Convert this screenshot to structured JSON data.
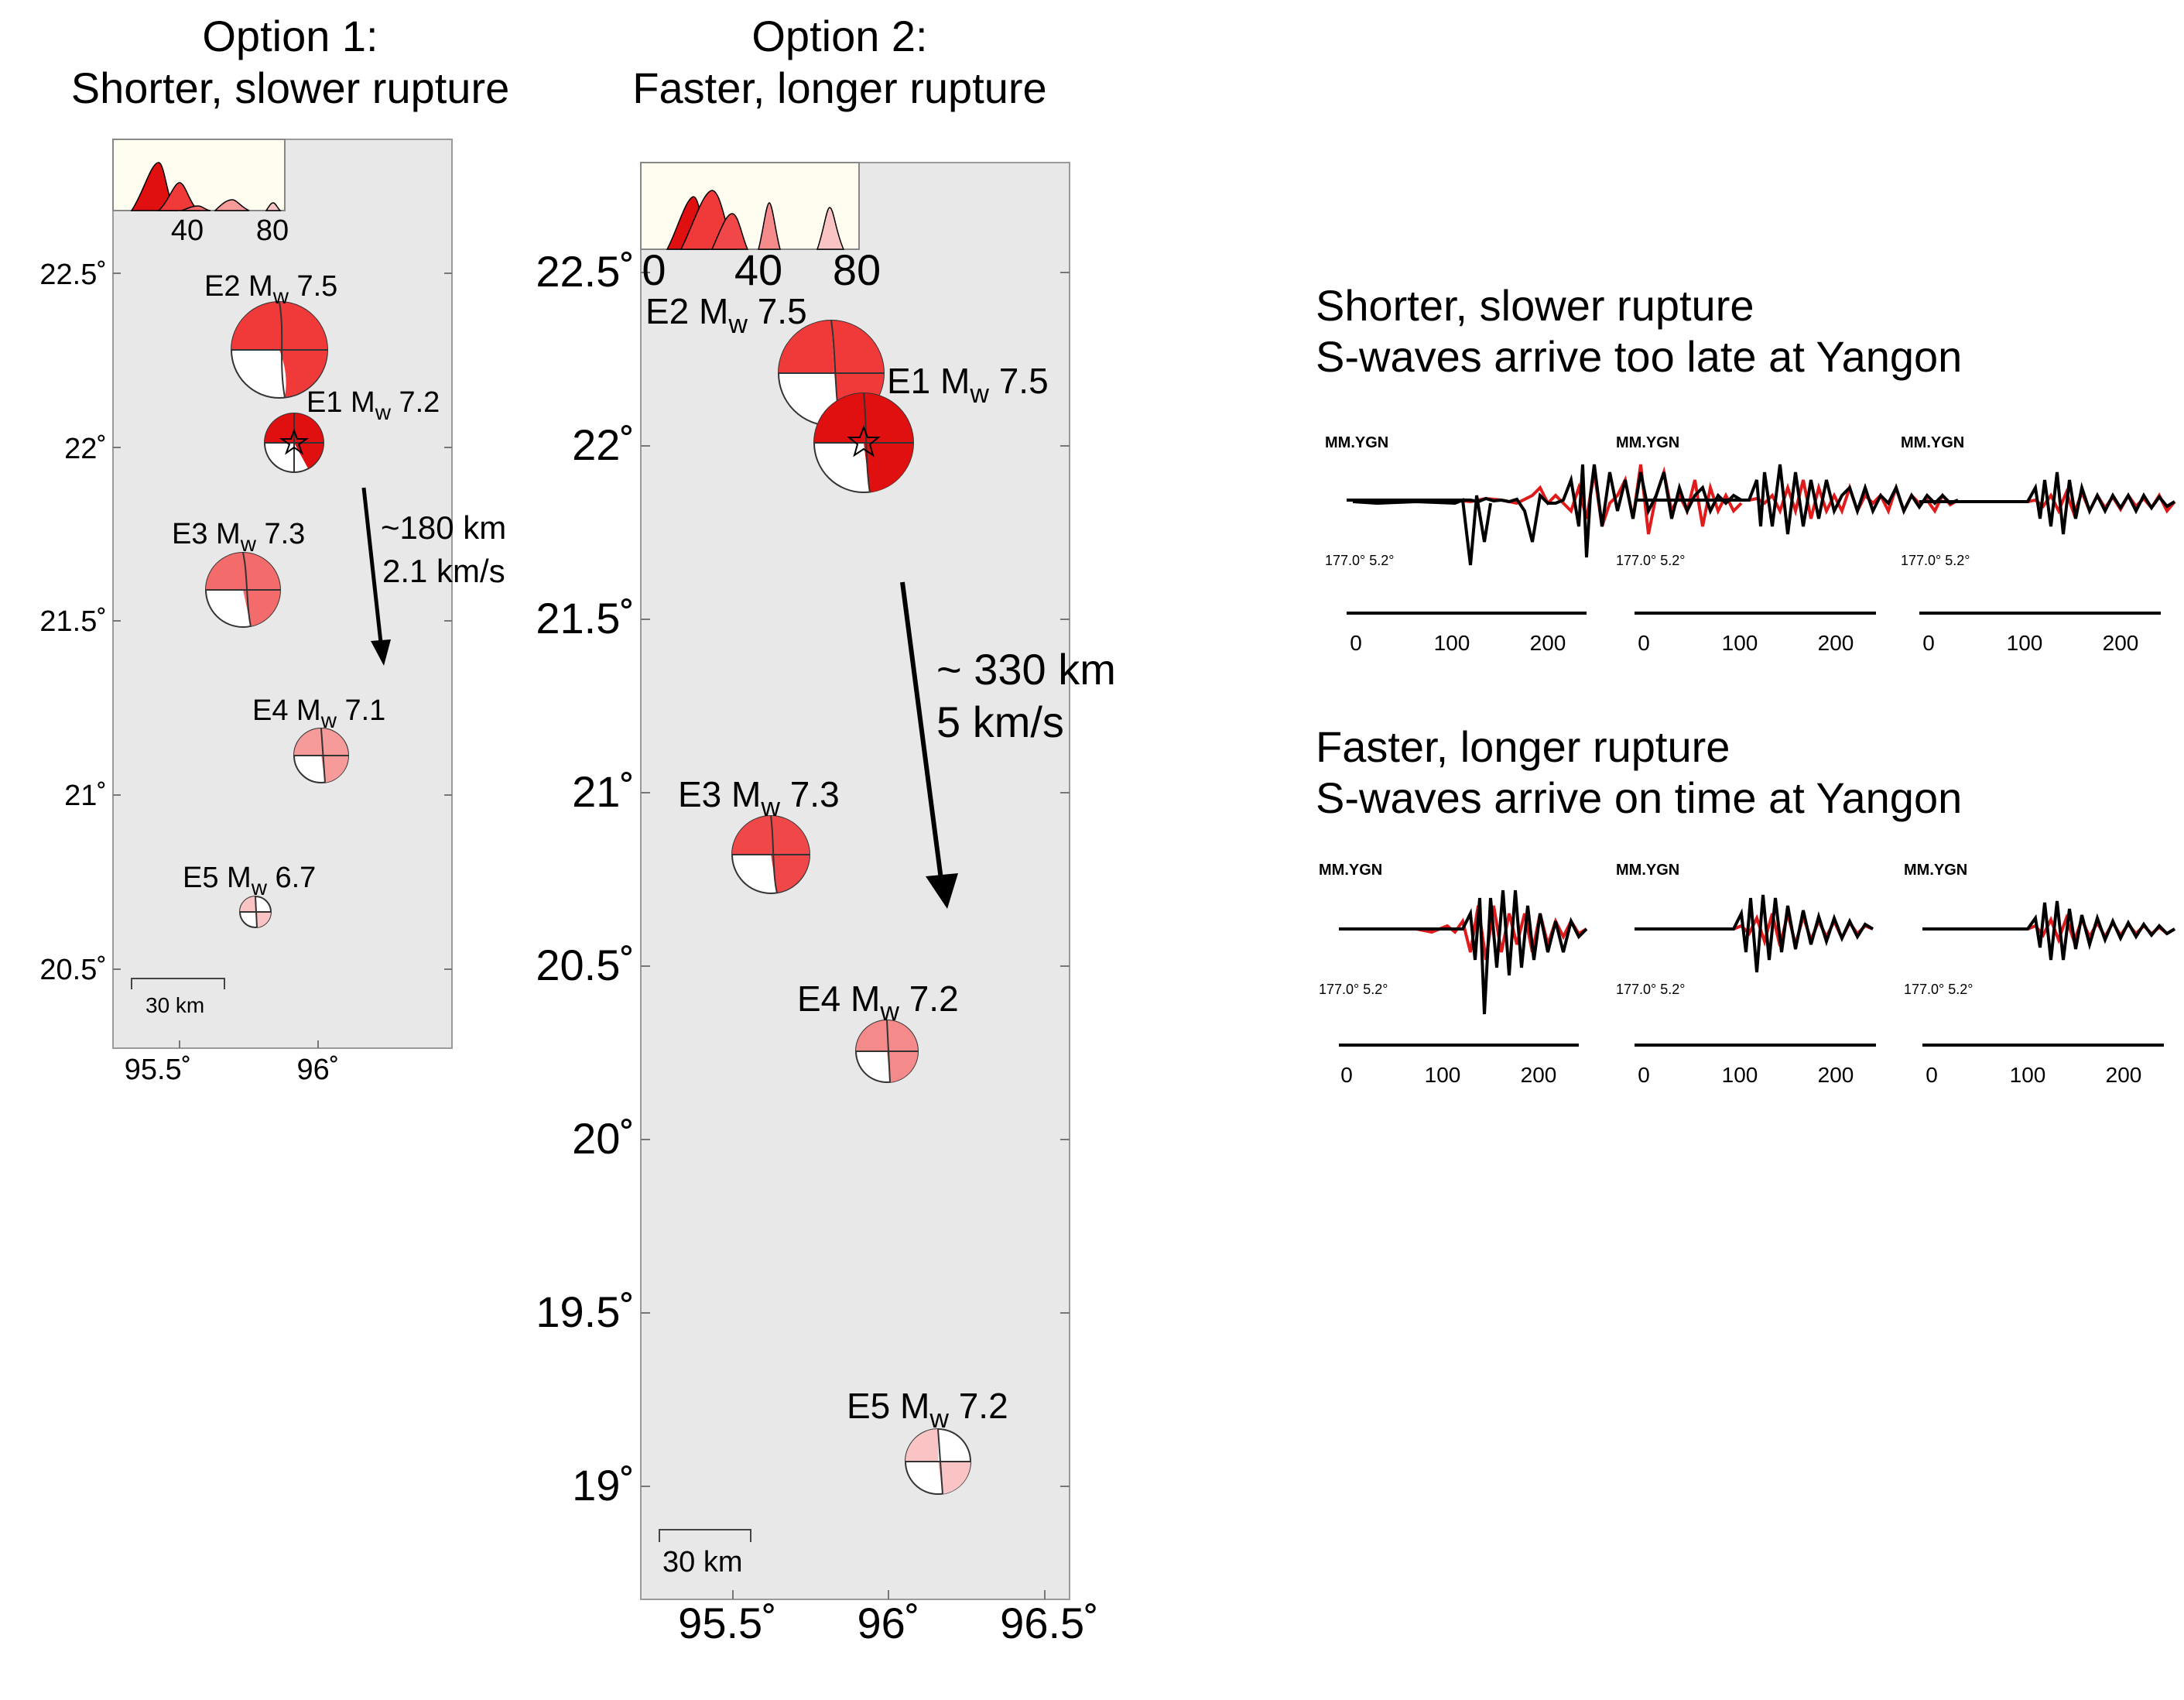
{
  "option1": {
    "title_line1": "Option 1:",
    "title_line2": "Shorter, slower rupture",
    "y_ticks": [
      "22.5˚",
      "22˚",
      "21.5˚",
      "21˚",
      "20.5˚"
    ],
    "x_ticks": [
      "95.5˚",
      "96˚"
    ],
    "inset_ticks": [
      "40",
      "80"
    ],
    "events": [
      {
        "id": "E2",
        "label_prefix": "E2 M",
        "sub": "w",
        "label_suffix": " 7.5",
        "color": "#f03a3a"
      },
      {
        "id": "E1",
        "label_prefix": "E1 M",
        "sub": "w",
        "label_suffix": " 7.2",
        "color": "#e01010"
      },
      {
        "id": "E3",
        "label_prefix": "E3 M",
        "sub": "w",
        "label_suffix": " 7.3",
        "color": "#f36b6b"
      },
      {
        "id": "E4",
        "label_prefix": "E4 M",
        "sub": "w",
        "label_suffix": " 7.1",
        "color": "#f79a9a"
      },
      {
        "id": "E5",
        "label_prefix": "E5 M",
        "sub": "w",
        "label_suffix": " 6.7",
        "color": "#fbc4c4"
      }
    ],
    "arrow_label_1": "~180 km",
    "arrow_label_2": "2.1 km/s",
    "scale_bar": "30 km"
  },
  "option2": {
    "title_line1": "Option 2:",
    "title_line2": "Faster, longer rupture",
    "y_ticks": [
      "22.5˚",
      "22˚",
      "21.5˚",
      "21˚",
      "20.5˚",
      "20˚",
      "19.5˚",
      "19˚"
    ],
    "x_ticks": [
      "95.5˚",
      "96˚",
      "96.5˚"
    ],
    "inset_ticks": [
      "0",
      "40",
      "80"
    ],
    "events": [
      {
        "id": "E2",
        "label_prefix": "E2 M",
        "sub": "w",
        "label_suffix": " 7.5",
        "color": "#f03a3a"
      },
      {
        "id": "E1",
        "label_prefix": "E1 M",
        "sub": "w",
        "label_suffix": " 7.5",
        "color": "#e01010"
      },
      {
        "id": "E3",
        "label_prefix": "E3 M",
        "sub": "w",
        "label_suffix": " 7.3",
        "color": "#f04848"
      },
      {
        "id": "E4",
        "label_prefix": "E4 M",
        "sub": "w",
        "label_suffix": " 7.2",
        "color": "#f58a8a"
      },
      {
        "id": "E5",
        "label_prefix": "E5 M",
        "sub": "w",
        "label_suffix": " 7.2",
        "color": "#fbc4c4"
      }
    ],
    "arrow_label_1": "~ 330 km",
    "arrow_label_2": "5 km/s",
    "scale_bar": "30 km"
  },
  "waveforms": {
    "top": {
      "line1": "Shorter, slower rupture",
      "line2": "S-waves arrive too late at Yangon"
    },
    "bottom": {
      "line1": "Faster, longer rupture",
      "line2": "S-waves arrive on time at Yangon"
    },
    "station": "MM.YGN",
    "angles": "177.0° 5.2°",
    "time_ticks": [
      "0",
      "100",
      "200"
    ],
    "colors": {
      "observed": "#000000",
      "synthetic": "#e01b1b"
    }
  }
}
